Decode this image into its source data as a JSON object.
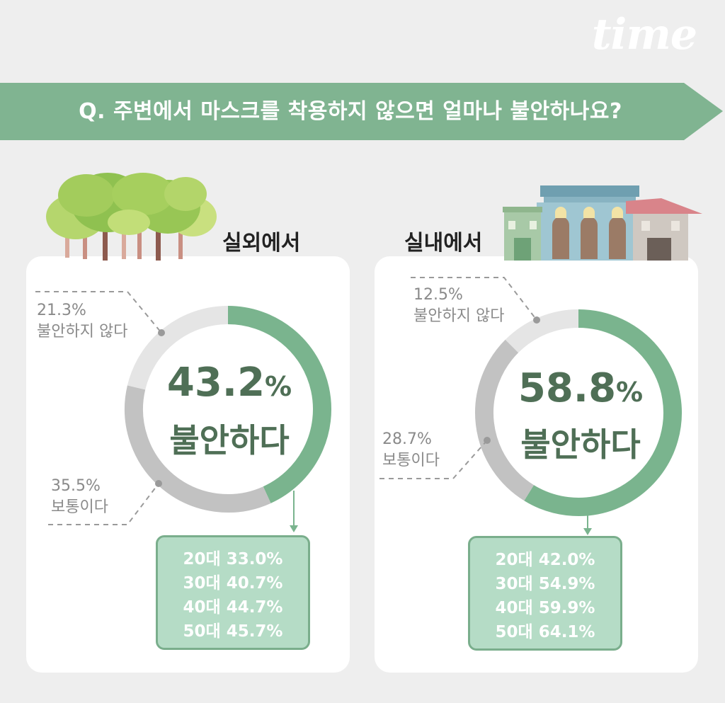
{
  "logo": {
    "text": "time"
  },
  "question": "Q. 주변에서 마스크를 착용하지 않으면 얼마나 불안하나요?",
  "colors": {
    "banner": "#80b491",
    "uneasy": "#7ab48e",
    "neutral": "#c2c2c2",
    "not_uneasy": "#e5e5e5",
    "headline": "#4f6f56",
    "age_box_fill": "#b5dcc6",
    "age_box_border": "#7aae8c"
  },
  "icons": {
    "outdoor": "trees-illustration",
    "indoor": "buildings-illustration"
  },
  "chart_data": [
    {
      "type": "pie",
      "title": "실외에서",
      "center": {
        "value": "43.2",
        "unit": "%",
        "label": "불안하다"
      },
      "series": [
        {
          "name": "불안하다",
          "value": 43.2
        },
        {
          "name": "보통이다",
          "value": 35.5
        },
        {
          "name": "불안하지 않다",
          "value": 21.3
        }
      ],
      "callouts": {
        "not_uneasy": {
          "pct": "21.3%",
          "label": "불안하지 않다"
        },
        "neutral": {
          "pct": "35.5%",
          "label": "보통이다"
        }
      },
      "age_breakdown": [
        {
          "age": "20대",
          "value": "33.0%"
        },
        {
          "age": "30대",
          "value": "40.7%"
        },
        {
          "age": "40대",
          "value": "44.7%"
        },
        {
          "age": "50대",
          "value": "45.7%"
        }
      ]
    },
    {
      "type": "pie",
      "title": "실내에서",
      "center": {
        "value": "58.8",
        "unit": "%",
        "label": "불안하다"
      },
      "series": [
        {
          "name": "불안하다",
          "value": 58.8
        },
        {
          "name": "보통이다",
          "value": 28.7
        },
        {
          "name": "불안하지 않다",
          "value": 12.5
        }
      ],
      "callouts": {
        "not_uneasy": {
          "pct": "12.5%",
          "label": "불안하지 않다"
        },
        "neutral": {
          "pct": "28.7%",
          "label": "보통이다"
        }
      },
      "age_breakdown": [
        {
          "age": "20대",
          "value": "42.0%"
        },
        {
          "age": "30대",
          "value": "54.9%"
        },
        {
          "age": "40대",
          "value": "59.9%"
        },
        {
          "age": "50대",
          "value": "64.1%"
        }
      ]
    }
  ]
}
